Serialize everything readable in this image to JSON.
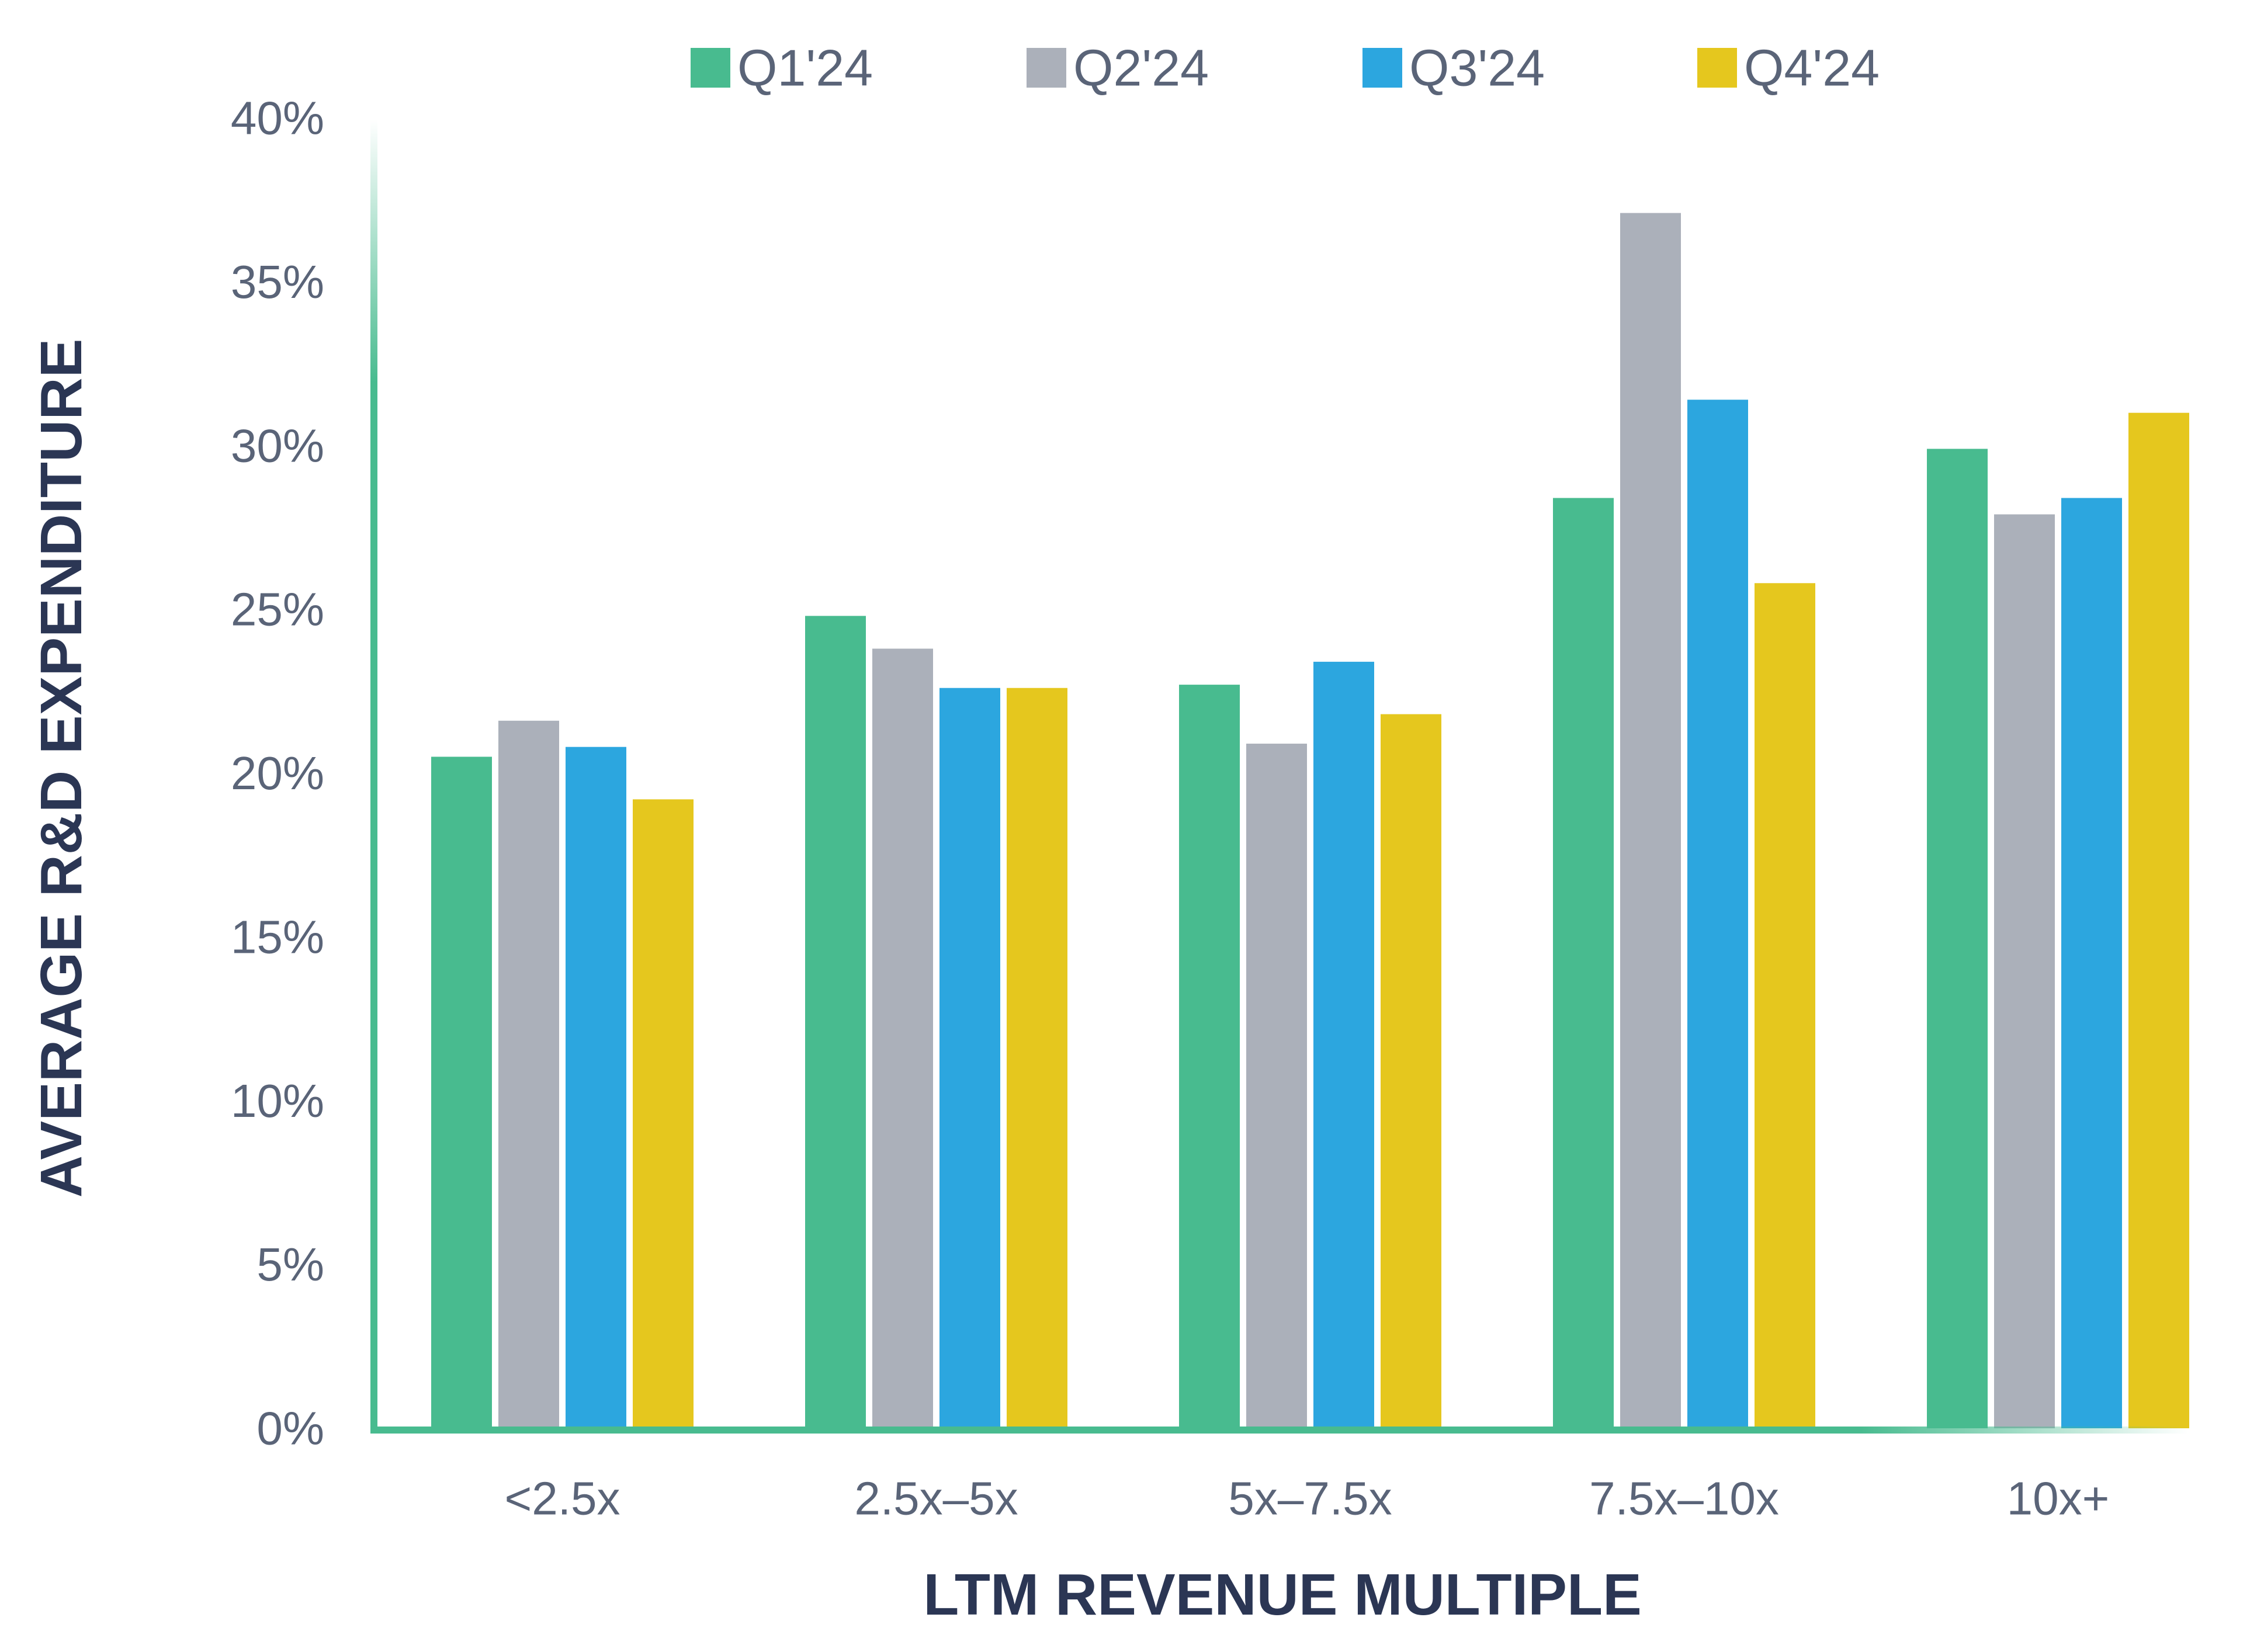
{
  "chart_data": {
    "type": "bar",
    "xlabel": "LTM REVENUE MULTIPLE",
    "ylabel": "AVERAGE R&D EXPENDITURE",
    "categories": [
      "<2.5x",
      "2.5x–5x",
      "5x–7.5x",
      "7.5x–10x",
      "10x+"
    ],
    "series": [
      {
        "name": "Q1'24",
        "color": "#48bb8f",
        "values": [
          20.5,
          24.8,
          22.7,
          28.4,
          29.9
        ]
      },
      {
        "name": "Q2'24",
        "color": "#abb0ba",
        "values": [
          21.6,
          23.8,
          20.9,
          37.1,
          27.9
        ]
      },
      {
        "name": "Q3'24",
        "color": "#2ca6df",
        "values": [
          20.8,
          22.6,
          23.4,
          31.4,
          28.4
        ]
      },
      {
        "name": "Q4'24",
        "color": "#e5c71e",
        "values": [
          19.2,
          22.6,
          21.8,
          25.8,
          31.0
        ]
      }
    ],
    "ylim": [
      0,
      40
    ],
    "yticks": [
      0,
      5,
      10,
      15,
      20,
      25,
      30,
      35,
      40
    ],
    "ytick_labels": [
      "0%",
      "5%",
      "10%",
      "15%",
      "20%",
      "25%",
      "30%",
      "35%",
      "40%"
    ],
    "axis_color": "#48bb8f",
    "grid": false,
    "legend_position": "top"
  }
}
